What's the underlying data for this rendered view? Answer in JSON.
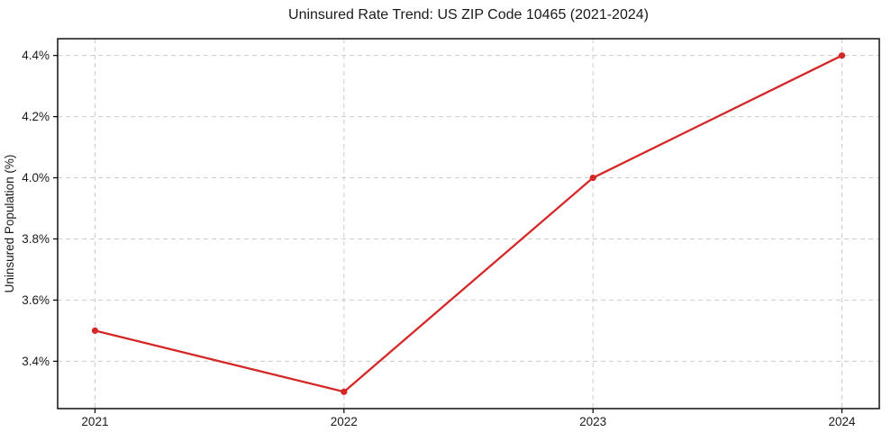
{
  "chart_data": {
    "type": "line",
    "title": "Uninsured Rate Trend: US ZIP Code 10465 (2021-2024)",
    "xlabel": "",
    "ylabel": "Uninsured Population (%)",
    "x": [
      2021,
      2022,
      2023,
      2024
    ],
    "x_tick_labels": [
      "2021",
      "2022",
      "2023",
      "2024"
    ],
    "series": [
      {
        "name": "uninsured-rate",
        "values": [
          3.5,
          3.3,
          4.0,
          4.4
        ]
      }
    ],
    "y_ticks": [
      3.4,
      3.6,
      3.8,
      4.0,
      4.2,
      4.4
    ],
    "y_tick_labels": [
      "3.4%",
      "3.6%",
      "3.8%",
      "4.0%",
      "4.2%",
      "4.4%"
    ],
    "xlim": [
      2020.85,
      2024.15
    ],
    "ylim": [
      3.245,
      4.455
    ],
    "grid": true,
    "grid_style": "dashed",
    "legend": false,
    "colors": {
      "line": "#d62728",
      "marker": "#d62728",
      "grid": "#cccccc",
      "spine": "#000000",
      "text": "#1a1a1a",
      "background": "#ffffff"
    },
    "marker": "circle",
    "marker_radius": 3.6,
    "line_width": 2.3
  }
}
